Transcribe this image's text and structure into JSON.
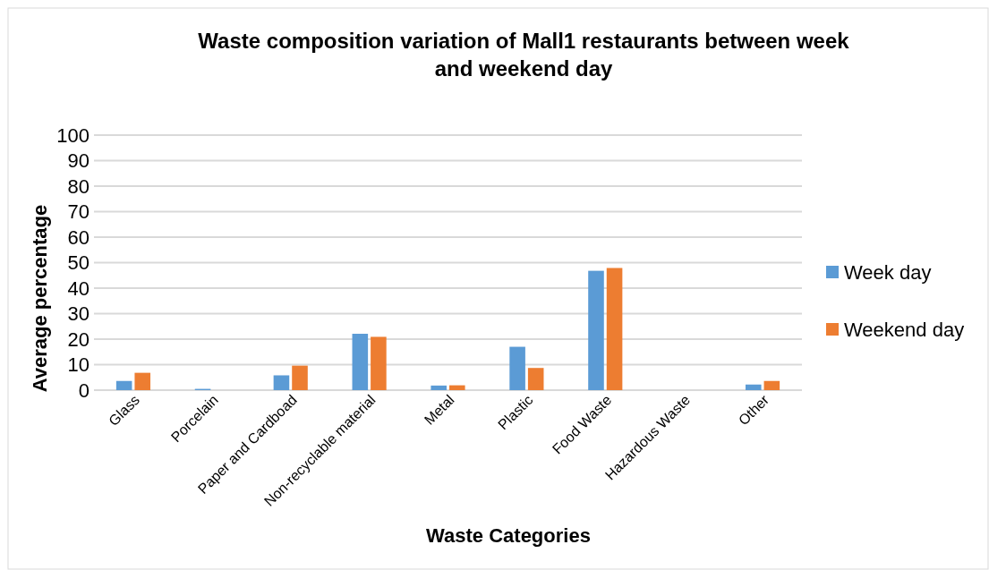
{
  "chart_data": {
    "type": "bar",
    "title": "Waste composition variation of Mall1 restaurants between week and weekend day",
    "xlabel": "Waste Categories",
    "ylabel": "Average percentage",
    "categories": [
      "Glass",
      "Porcelain",
      "Paper and Cardboad",
      "Non-recyclable material",
      "Metal",
      "Plastic",
      "Food Waste",
      "Hazardous Waste",
      "Other"
    ],
    "series": [
      {
        "name": "Week day",
        "color": "#5b9bd5",
        "values": [
          3.6,
          0.5,
          5.8,
          22.1,
          1.8,
          17.0,
          46.8,
          0,
          2.2
        ]
      },
      {
        "name": "Weekend day",
        "color": "#ed7d31",
        "values": [
          6.8,
          0,
          9.6,
          20.9,
          1.9,
          8.7,
          47.9,
          0,
          3.6
        ]
      }
    ],
    "ylim": [
      0,
      100
    ],
    "yticks": [
      0,
      10,
      20,
      30,
      40,
      50,
      60,
      70,
      80,
      90,
      100
    ],
    "grid": "y",
    "legend": "right"
  }
}
